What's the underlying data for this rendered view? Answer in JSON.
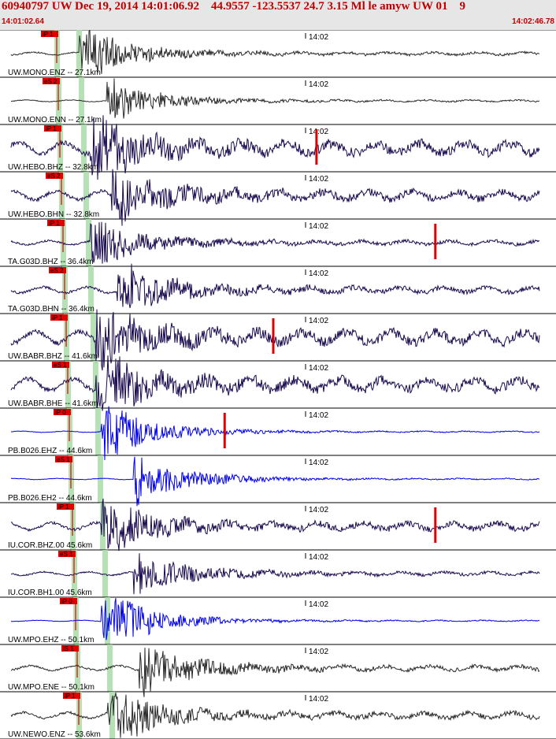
{
  "header": {
    "title": "60940797 UW Dec 19, 2014 14:01:06.92    44.9557 -123.5537 24.7 3.15 Ml le amyw UW 01    9",
    "start_time": "14:01:02.64",
    "end_time": "14:02:46.78"
  },
  "chart_data": {
    "type": "line",
    "title": "60940797 UW Dec 19, 2014 14:01:06.92    44.9557 -123.5537 24.7 3.15 Ml le amyw UW 01    9",
    "x_range": [
      "14:01:02.64",
      "14:02:46.78"
    ],
    "tick_label": "14:02",
    "colors": {
      "black": "#2a2a2a",
      "navy": "#1a0a50",
      "blue": "#0000ee",
      "pick": "#e00000",
      "p_window": "#a8dca8",
      "s_window": "#a8dca8"
    },
    "traces": [
      {
        "label": "UW.MONO.ENZ -- 27.1km",
        "pick": "iP 1",
        "color": "black",
        "amp": 0.45,
        "noise": 0.05,
        "start": 0.09,
        "glitch": null
      },
      {
        "label": "UW.MONO.ENN -- 27.1km",
        "pick": "eS 2",
        "color": "black",
        "amp": 0.4,
        "noise": 0.03,
        "start": 0.14,
        "glitch": null
      },
      {
        "label": "UW.HEBO.BHZ -- 32.8km",
        "pick": "iP 1",
        "color": "navy",
        "amp": 0.48,
        "noise": 0.2,
        "start": 0.11,
        "glitch": 0.58
      },
      {
        "label": "UW.HEBO.BHN -- 32.8km",
        "pick": "eS 2",
        "color": "navy",
        "amp": 0.45,
        "noise": 0.15,
        "start": 0.15,
        "glitch": null
      },
      {
        "label": "TA.G03D.BHZ -- 36.4km",
        "pick": "iP 1",
        "color": "navy",
        "amp": 0.4,
        "noise": 0.07,
        "start": 0.11,
        "glitch": 0.8
      },
      {
        "label": "TA.G03D.BHN -- 36.4km",
        "pick": "eS 2",
        "color": "navy",
        "amp": 0.46,
        "noise": 0.1,
        "start": 0.16,
        "glitch": null
      },
      {
        "label": "UW.BABR.BHZ -- 41.6km",
        "pick": "iP 1",
        "color": "navy",
        "amp": 0.45,
        "noise": 0.2,
        "start": 0.12,
        "glitch": 0.5
      },
      {
        "label": "UW.BABR.BHE -- 41.6km",
        "pick": "eS 1",
        "color": "navy",
        "amp": 0.45,
        "noise": 0.2,
        "start": 0.12,
        "glitch": null
      },
      {
        "label": "PB.B026.EHZ -- 44.6km",
        "pick": "iP 0",
        "color": "blue",
        "amp": 0.5,
        "noise": 0.02,
        "start": 0.13,
        "glitch": 0.41
      },
      {
        "label": "PB.B026.EH2 -- 44.6km",
        "pick": "eS 1",
        "color": "blue",
        "amp": 0.48,
        "noise": 0.02,
        "start": 0.19,
        "glitch": null
      },
      {
        "label": "IU.COR.BHZ.00 45.6km",
        "pick": "iP 1",
        "color": "navy",
        "amp": 0.42,
        "noise": 0.12,
        "start": 0.13,
        "glitch": 0.8
      },
      {
        "label": "IU.COR.BH1.00 45.6km",
        "pick": "eS 1",
        "color": "navy",
        "amp": 0.38,
        "noise": 0.06,
        "start": 0.19,
        "glitch": null
      },
      {
        "label": "UW.MPO.EHZ -- 50.1km",
        "pick": "iP 0",
        "color": "blue",
        "amp": 0.5,
        "noise": 0.02,
        "start": 0.13,
        "glitch": null
      },
      {
        "label": "UW.MPO.ENE -- 50.1km",
        "pick": "iS 1",
        "color": "black",
        "amp": 0.48,
        "noise": 0.08,
        "start": 0.2,
        "glitch": null
      },
      {
        "label": "UW.NEWO.ENZ -- 53.6km",
        "pick": "iP 1",
        "color": "black",
        "amp": 0.45,
        "noise": 0.1,
        "start": 0.14,
        "glitch": null
      }
    ]
  }
}
